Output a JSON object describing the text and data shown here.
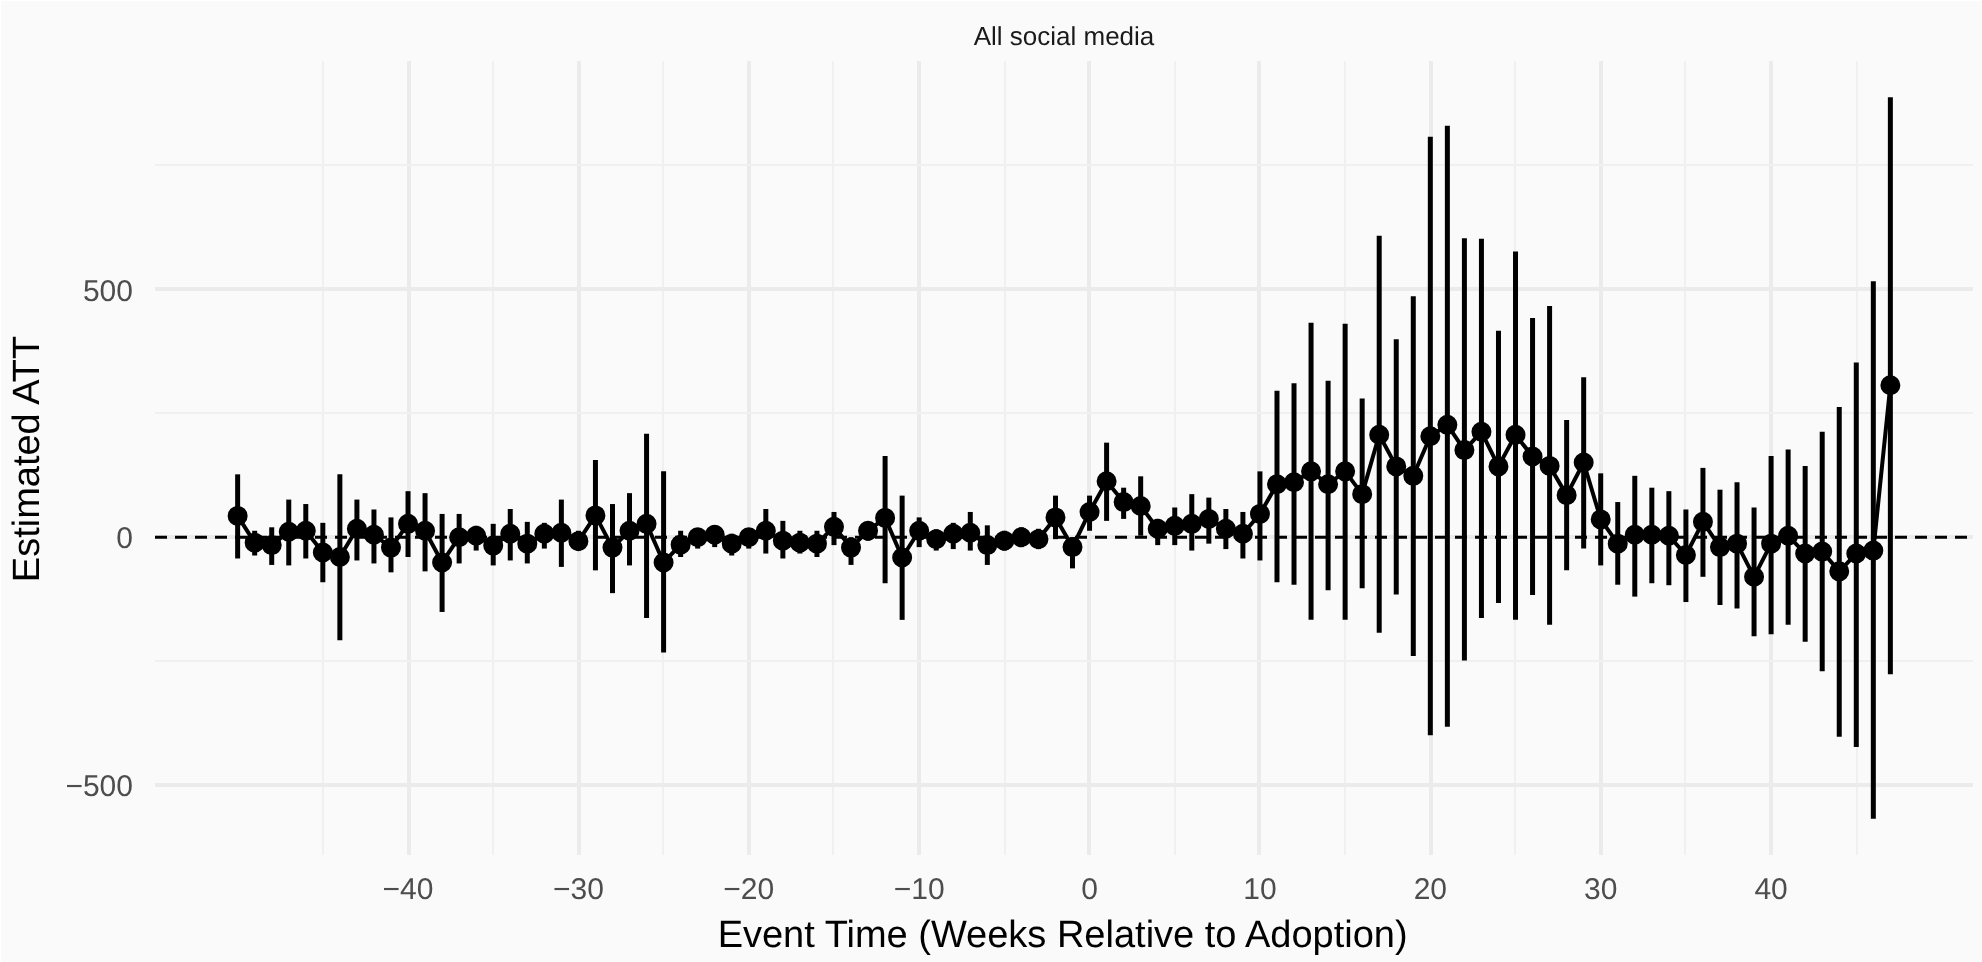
{
  "chart_data": {
    "type": "line",
    "title": "All social media",
    "xlabel": "Event Time (Weeks Relative to Adoption)",
    "ylabel": "Estimated ATT",
    "x": [
      -50,
      -49,
      -48,
      -47,
      -46,
      -45,
      -44,
      -43,
      -42,
      -41,
      -40,
      -39,
      -38,
      -37,
      -36,
      -35,
      -34,
      -33,
      -32,
      -31,
      -30,
      -29,
      -28,
      -27,
      -26,
      -25,
      -24,
      -23,
      -22,
      -21,
      -20,
      -19,
      -18,
      -17,
      -16,
      -15,
      -14,
      -13,
      -12,
      -11,
      -10,
      -9,
      -8,
      -7,
      -6,
      -5,
      -4,
      -3,
      -2,
      -1,
      0,
      1,
      2,
      3,
      4,
      5,
      6,
      7,
      8,
      9,
      10,
      11,
      12,
      13,
      14,
      15,
      16,
      17,
      18,
      19,
      20,
      21,
      22,
      23,
      24,
      25,
      26,
      27,
      28,
      29,
      30,
      31,
      32,
      33,
      34,
      35,
      36,
      37,
      38,
      39,
      40,
      41,
      42,
      43,
      44,
      45,
      46,
      47
    ],
    "series": [
      {
        "color": "#000000",
        "values": [
          43,
          -11,
          -16,
          11,
          13,
          -31,
          -40,
          17,
          5,
          -21,
          27,
          13,
          -51,
          0,
          3,
          -17,
          7,
          -13,
          7,
          9,
          -8,
          44,
          -21,
          13,
          27,
          -51,
          -15,
          0,
          5,
          -13,
          0,
          13,
          -7,
          -11,
          -13,
          21,
          -21,
          13,
          39,
          -41,
          13,
          -4,
          7,
          9,
          -16,
          -7,
          0,
          -4,
          40,
          -20,
          51,
          113,
          71,
          63,
          17,
          23,
          27,
          37,
          17,
          7,
          47,
          107,
          111,
          133,
          107,
          133,
          87,
          207,
          143,
          124,
          204,
          227,
          176,
          213,
          143,
          207,
          163,
          144,
          85,
          151,
          36,
          -13,
          5,
          5,
          3,
          -36,
          31,
          -20,
          -13,
          -80,
          -13,
          3,
          -33,
          -29,
          -69,
          -33,
          -27,
          307
        ],
        "errors": [
          [
            -43,
            127
          ],
          [
            -37,
            13
          ],
          [
            -56,
            20
          ],
          [
            -57,
            76
          ],
          [
            -43,
            67
          ],
          [
            -91,
            29
          ],
          [
            -208,
            127
          ],
          [
            -47,
            76
          ],
          [
            -53,
            56
          ],
          [
            -71,
            40
          ],
          [
            -40,
            93
          ],
          [
            -69,
            89
          ],
          [
            -151,
            47
          ],
          [
            -53,
            47
          ],
          [
            -27,
            23
          ],
          [
            -57,
            27
          ],
          [
            -47,
            57
          ],
          [
            -53,
            31
          ],
          [
            -23,
            29
          ],
          [
            -60,
            76
          ],
          [
            -27,
            13
          ],
          [
            -67,
            156
          ],
          [
            -113,
            67
          ],
          [
            -57,
            89
          ],
          [
            -163,
            209
          ],
          [
            -233,
            133
          ],
          [
            -40,
            13
          ],
          [
            -23,
            17
          ],
          [
            -20,
            24
          ],
          [
            -37,
            7
          ],
          [
            -23,
            17
          ],
          [
            -33,
            57
          ],
          [
            -43,
            33
          ],
          [
            -33,
            13
          ],
          [
            -40,
            13
          ],
          [
            -16,
            51
          ],
          [
            -56,
            0
          ],
          [
            -7,
            27
          ],
          [
            -93,
            164
          ],
          [
            -167,
            84
          ],
          [
            -20,
            40
          ],
          [
            -27,
            16
          ],
          [
            -24,
            29
          ],
          [
            -27,
            51
          ],
          [
            -56,
            24
          ],
          [
            -27,
            13
          ],
          [
            -20,
            20
          ],
          [
            -24,
            17
          ],
          [
            -4,
            84
          ],
          [
            -63,
            0
          ],
          [
            13,
            84
          ],
          [
            33,
            191
          ],
          [
            37,
            100
          ],
          [
            3,
            123
          ],
          [
            -16,
            37
          ],
          [
            -16,
            60
          ],
          [
            -27,
            87
          ],
          [
            -13,
            80
          ],
          [
            -24,
            57
          ],
          [
            -43,
            51
          ],
          [
            -47,
            133
          ],
          [
            -91,
            296
          ],
          [
            -96,
            311
          ],
          [
            -167,
            433
          ],
          [
            -107,
            316
          ],
          [
            -167,
            431
          ],
          [
            -103,
            280
          ],
          [
            -193,
            609
          ],
          [
            -116,
            400
          ],
          [
            -240,
            487
          ],
          [
            -400,
            809
          ],
          [
            -383,
            831
          ],
          [
            -249,
            604
          ],
          [
            -163,
            603
          ],
          [
            -133,
            417
          ],
          [
            -167,
            577
          ],
          [
            -117,
            443
          ],
          [
            -177,
            467
          ],
          [
            -67,
            237
          ],
          [
            -23,
            323
          ],
          [
            -57,
            129
          ],
          [
            -96,
            71
          ],
          [
            -120,
            124
          ],
          [
            -93,
            100
          ],
          [
            -97,
            93
          ],
          [
            -131,
            56
          ],
          [
            -80,
            140
          ],
          [
            -137,
            96
          ],
          [
            -144,
            111
          ],
          [
            -200,
            60
          ],
          [
            -196,
            164
          ],
          [
            -177,
            177
          ],
          [
            -211,
            144
          ],
          [
            -271,
            213
          ],
          [
            -403,
            263
          ],
          [
            -424,
            353
          ],
          [
            -569,
            517
          ],
          [
            -277,
            889
          ]
        ]
      }
    ],
    "marker": "circle",
    "line_style": "solid",
    "xlim": [
      -54.85,
      51.85
    ],
    "ylim": [
      -642,
      962
    ],
    "xticks": [
      -40,
      -30,
      -20,
      -10,
      0,
      10,
      20,
      30,
      40
    ],
    "yticks": [
      -500,
      0,
      500
    ],
    "ref_lines": [
      {
        "axis": "y",
        "value": 0,
        "line_style": "dashed",
        "color": "#000000"
      }
    ],
    "grid": true
  }
}
